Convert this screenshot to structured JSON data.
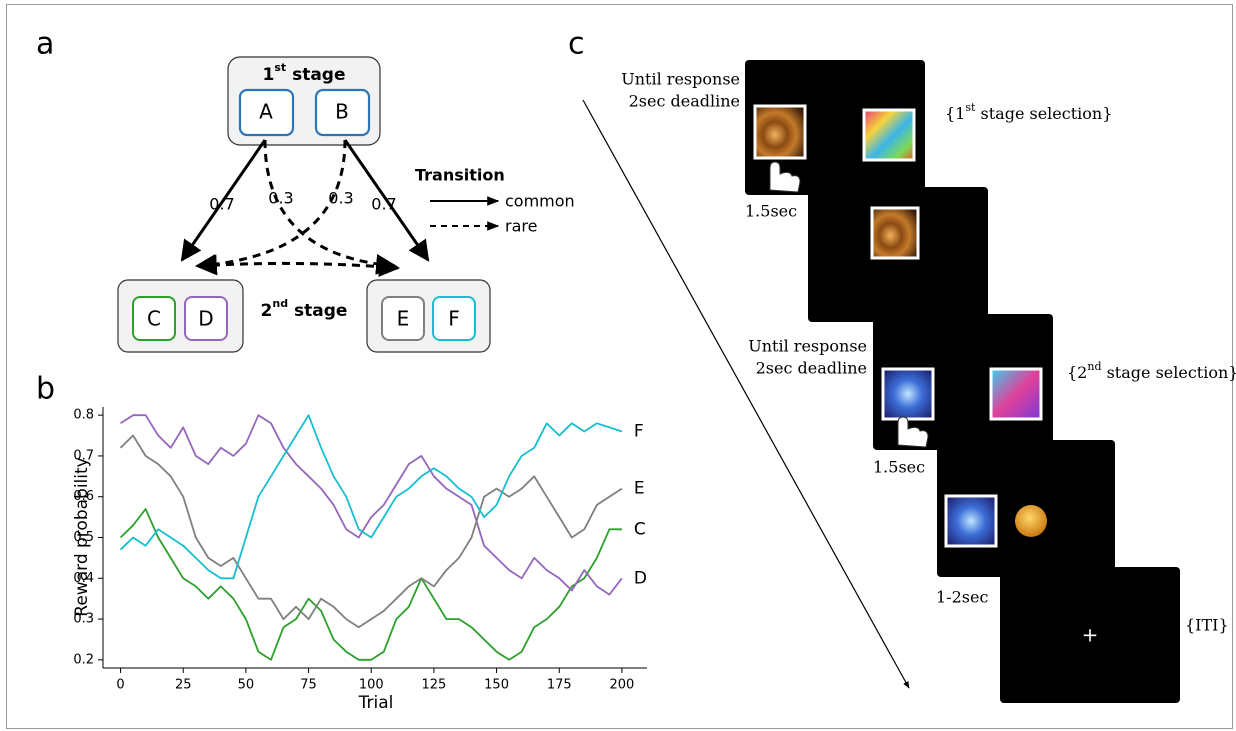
{
  "panel_labels": [
    "a",
    "b",
    "c"
  ],
  "diagram": {
    "stage1": [
      "1",
      "st",
      " stage"
    ],
    "stage2": [
      "2",
      "nd",
      " stage"
    ],
    "nodes": [
      "A",
      "B",
      "C",
      "D",
      "E",
      "F"
    ],
    "probabilities": [
      0.7,
      0.3,
      0.3,
      0.7
    ],
    "legend": {
      "title": "Transition",
      "common": "common",
      "rare": "rare"
    }
  },
  "chart_data": {
    "type": "line",
    "x_label": "Trial",
    "y_label": "Reward probability",
    "x": [
      0,
      5,
      10,
      15,
      20,
      25,
      30,
      35,
      40,
      45,
      50,
      55,
      60,
      65,
      70,
      75,
      80,
      85,
      90,
      95,
      100,
      105,
      110,
      115,
      120,
      125,
      130,
      135,
      140,
      145,
      150,
      155,
      160,
      165,
      170,
      175,
      180,
      185,
      190,
      195,
      200
    ],
    "series": [
      {
        "name": "C",
        "color": "#2ca02c",
        "values": [
          0.5,
          0.53,
          0.57,
          0.5,
          0.45,
          0.4,
          0.38,
          0.35,
          0.38,
          0.35,
          0.3,
          0.22,
          0.2,
          0.28,
          0.3,
          0.35,
          0.32,
          0.25,
          0.22,
          0.2,
          0.2,
          0.22,
          0.3,
          0.33,
          0.4,
          0.35,
          0.3,
          0.3,
          0.28,
          0.25,
          0.22,
          0.2,
          0.22,
          0.28,
          0.3,
          0.33,
          0.38,
          0.4,
          0.45,
          0.52,
          0.52
        ]
      },
      {
        "name": "D",
        "color": "#9467bd",
        "values": [
          0.78,
          0.8,
          0.8,
          0.75,
          0.72,
          0.77,
          0.7,
          0.68,
          0.72,
          0.7,
          0.73,
          0.8,
          0.78,
          0.72,
          0.68,
          0.65,
          0.62,
          0.58,
          0.52,
          0.5,
          0.55,
          0.58,
          0.63,
          0.68,
          0.7,
          0.65,
          0.62,
          0.6,
          0.58,
          0.48,
          0.45,
          0.42,
          0.4,
          0.45,
          0.42,
          0.4,
          0.37,
          0.42,
          0.38,
          0.36,
          0.4
        ]
      },
      {
        "name": "E",
        "color": "#7f7f7f",
        "values": [
          0.72,
          0.75,
          0.7,
          0.68,
          0.65,
          0.6,
          0.5,
          0.45,
          0.43,
          0.45,
          0.4,
          0.35,
          0.35,
          0.3,
          0.33,
          0.3,
          0.35,
          0.33,
          0.3,
          0.28,
          0.3,
          0.32,
          0.35,
          0.38,
          0.4,
          0.38,
          0.42,
          0.45,
          0.5,
          0.6,
          0.62,
          0.6,
          0.62,
          0.65,
          0.6,
          0.55,
          0.5,
          0.52,
          0.58,
          0.6,
          0.62
        ]
      },
      {
        "name": "F",
        "color": "#17becf",
        "values": [
          0.47,
          0.5,
          0.48,
          0.52,
          0.5,
          0.48,
          0.45,
          0.42,
          0.4,
          0.4,
          0.5,
          0.6,
          0.65,
          0.7,
          0.75,
          0.8,
          0.72,
          0.65,
          0.6,
          0.52,
          0.5,
          0.55,
          0.6,
          0.62,
          0.65,
          0.67,
          0.65,
          0.62,
          0.6,
          0.55,
          0.58,
          0.65,
          0.7,
          0.72,
          0.78,
          0.75,
          0.78,
          0.76,
          0.78,
          0.77,
          0.76
        ]
      }
    ],
    "xlim": [
      -7,
      210
    ],
    "ylim": [
      0.18,
      0.82
    ],
    "xticks": [
      0,
      25,
      50,
      75,
      100,
      125,
      150,
      175,
      200
    ],
    "yticks": [
      0.2,
      0.3,
      0.4,
      0.5,
      0.6,
      0.7,
      0.8
    ],
    "grid": false
  },
  "task": {
    "screens": [
      {
        "timing": [
          "Until response",
          "2sec deadline"
        ],
        "annotation": [
          "{1",
          "st",
          " stage selection}"
        ]
      },
      {
        "timing": [
          "1.5sec"
        ]
      },
      {
        "timing": [
          "Until response",
          "2sec deadline"
        ],
        "annotation": [
          "{2",
          "nd",
          " stage selection}"
        ]
      },
      {
        "timing": [
          "1.5sec"
        ]
      },
      {
        "timing": [
          "1-2sec"
        ]
      },
      {
        "annotation": [
          "{ITI}"
        ],
        "fixation": "+"
      }
    ]
  }
}
